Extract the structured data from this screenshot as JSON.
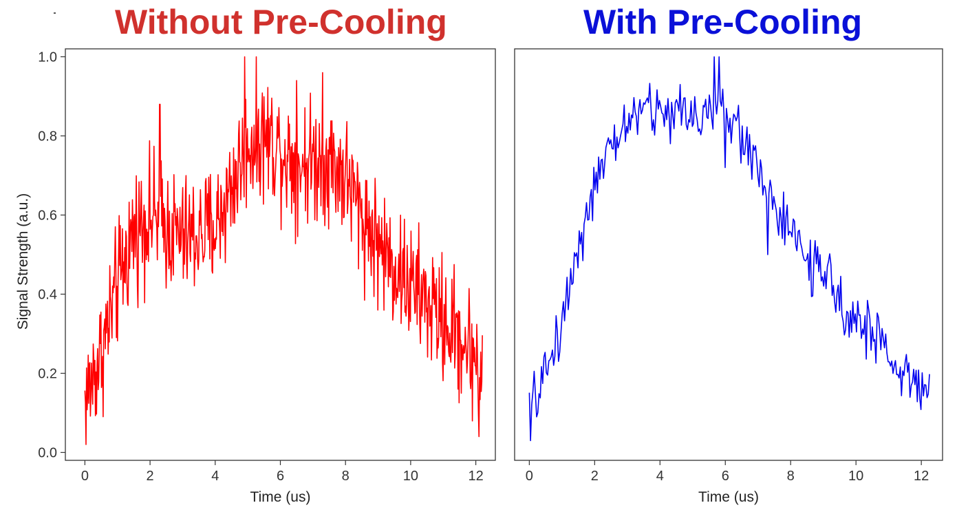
{
  "colors": {
    "left_title": "#d0312d",
    "right_title": "#0a10d8",
    "left_line": "#ff0000",
    "right_line": "#0000ee",
    "frame": "#333333"
  },
  "chart_data": [
    {
      "type": "line",
      "title": "Without Pre-Cooling",
      "xlabel": "Time (us)",
      "ylabel": "Signal Strength (a.u.)",
      "xlim": [
        -0.6,
        12.6
      ],
      "ylim": [
        -0.02,
        1.02
      ],
      "xticks": [
        "0",
        "2",
        "4",
        "6",
        "8",
        "10",
        "12"
      ],
      "yticks": [
        "0.0",
        "0.2",
        "0.4",
        "0.6",
        "0.8",
        "1.0"
      ],
      "grid": false,
      "series": [
        {
          "color": "#ff0000",
          "x_range": [
            0,
            12.2
          ],
          "n_points": 720,
          "noise_amplitude": 0.11,
          "envelope": [
            [
              0,
              0.13
            ],
            [
              0.5,
              0.25
            ],
            [
              1,
              0.42
            ],
            [
              1.5,
              0.56
            ],
            [
              2,
              0.6
            ],
            [
              2.5,
              0.57
            ],
            [
              3,
              0.54
            ],
            [
              3.5,
              0.55
            ],
            [
              4,
              0.57
            ],
            [
              4.5,
              0.67
            ],
            [
              5,
              0.78
            ],
            [
              5.5,
              0.8
            ],
            [
              6,
              0.77
            ],
            [
              6.5,
              0.73
            ],
            [
              7,
              0.74
            ],
            [
              7.5,
              0.74
            ],
            [
              8,
              0.7
            ],
            [
              8.5,
              0.6
            ],
            [
              9,
              0.53
            ],
            [
              9.5,
              0.47
            ],
            [
              10,
              0.42
            ],
            [
              10.5,
              0.38
            ],
            [
              11,
              0.33
            ],
            [
              11.5,
              0.29
            ],
            [
              12,
              0.24
            ],
            [
              12.2,
              0.19
            ]
          ],
          "peaks": [
            [
              4.9,
              1.0
            ],
            [
              7.3,
              0.96
            ],
            [
              2.3,
              0.88
            ],
            [
              6.5,
              0.94
            ],
            [
              12.1,
              0.04
            ]
          ]
        }
      ]
    },
    {
      "type": "line",
      "title": "With Pre-Cooling",
      "xlabel": "Time (us)",
      "ylabel": "",
      "xlim": [
        -0.45,
        12.65
      ],
      "ylim": [
        -0.02,
        1.02
      ],
      "xticks": [
        "0",
        "2",
        "4",
        "6",
        "8",
        "10",
        "12"
      ],
      "grid": false,
      "series": [
        {
          "color": "#0000ee",
          "x_range": [
            0,
            12.25
          ],
          "n_points": 330,
          "noise_amplitude": 0.05,
          "envelope": [
            [
              0,
              0.1
            ],
            [
              0.5,
              0.2
            ],
            [
              1,
              0.33
            ],
            [
              1.5,
              0.53
            ],
            [
              2,
              0.67
            ],
            [
              2.5,
              0.76
            ],
            [
              3,
              0.84
            ],
            [
              3.5,
              0.87
            ],
            [
              4,
              0.86
            ],
            [
              4.5,
              0.86
            ],
            [
              5,
              0.86
            ],
            [
              5.5,
              0.86
            ],
            [
              6,
              0.85
            ],
            [
              6.5,
              0.8
            ],
            [
              7,
              0.73
            ],
            [
              7.5,
              0.62
            ],
            [
              8,
              0.55
            ],
            [
              8.5,
              0.49
            ],
            [
              9,
              0.44
            ],
            [
              9.5,
              0.39
            ],
            [
              10,
              0.34
            ],
            [
              10.5,
              0.3
            ],
            [
              11,
              0.25
            ],
            [
              11.5,
              0.19
            ],
            [
              12,
              0.17
            ],
            [
              12.25,
              0.19
            ]
          ],
          "peaks": [
            [
              5.65,
              1.0
            ],
            [
              5.8,
              1.0
            ],
            [
              0.05,
              0.03
            ],
            [
              6.0,
              0.72
            ],
            [
              7.3,
              0.5
            ]
          ]
        }
      ]
    }
  ]
}
